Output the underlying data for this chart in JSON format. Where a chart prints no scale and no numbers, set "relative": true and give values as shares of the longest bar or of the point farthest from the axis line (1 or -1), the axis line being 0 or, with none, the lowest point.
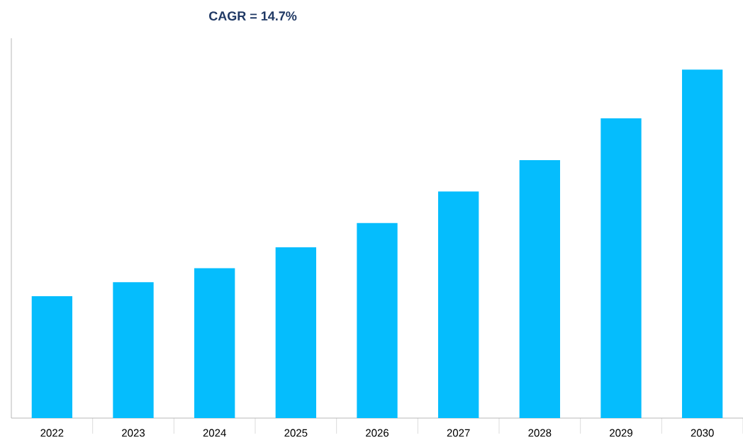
{
  "chart_data": {
    "type": "bar",
    "title": "CAGR = 14.7%",
    "categories": [
      "2022",
      "2023",
      "2024",
      "2025",
      "2026",
      "2027",
      "2028",
      "2029",
      "2030"
    ],
    "values": [
      0.35,
      0.39,
      0.43,
      0.49,
      0.56,
      0.65,
      0.74,
      0.86,
      1
    ],
    "color": "#05bdfd",
    "relative": true,
    "tick_labels": "x"
  }
}
